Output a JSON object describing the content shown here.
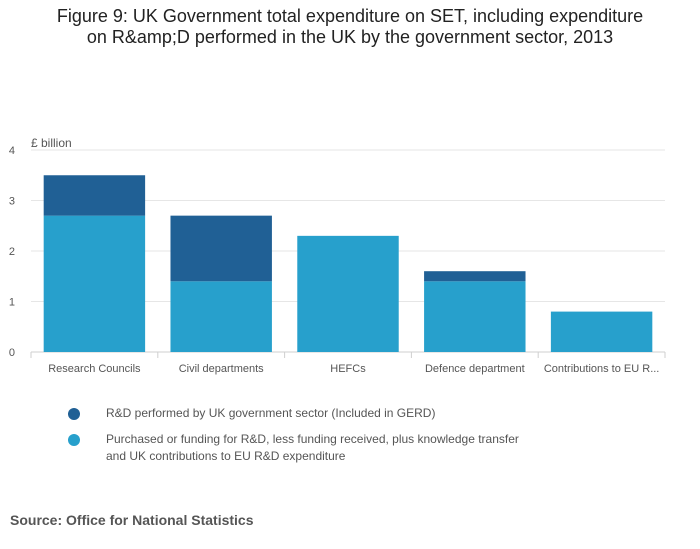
{
  "title_lines": [
    "Figure 9: UK Government total expenditure on SET, including expenditure",
    "on R&amp;D performed in the UK by the government sector, 2013"
  ],
  "source": "Source: Office for National Statistics",
  "chart_data": {
    "type": "bar",
    "stacked": true,
    "title": "Figure 9: UK Government total expenditure on SET, including expenditure on R&amp;D performed in the UK by the government sector, 2013",
    "ylabel": "£ billion",
    "ylim": [
      0,
      4
    ],
    "yticks": [
      0,
      1,
      2,
      3,
      4
    ],
    "grid": true,
    "legend_position": "bottom",
    "categories": [
      "Research Councils",
      "Civil departments",
      "HEFCs",
      "Defence department",
      "Contributions to EU R..."
    ],
    "series": [
      {
        "name": "Purchased or funding for R&D, less funding received, plus knowledge transfer and UK contributions to EU R&D expenditure",
        "color": "#27a0cc",
        "values": [
          2.7,
          1.4,
          2.3,
          1.4,
          0.8
        ]
      },
      {
        "name": "R&D performed by UK government sector (Included in GERD)",
        "color": "#206095",
        "values": [
          0.8,
          1.3,
          0,
          0.2,
          0
        ]
      }
    ],
    "legend_order": [
      1,
      0
    ]
  }
}
